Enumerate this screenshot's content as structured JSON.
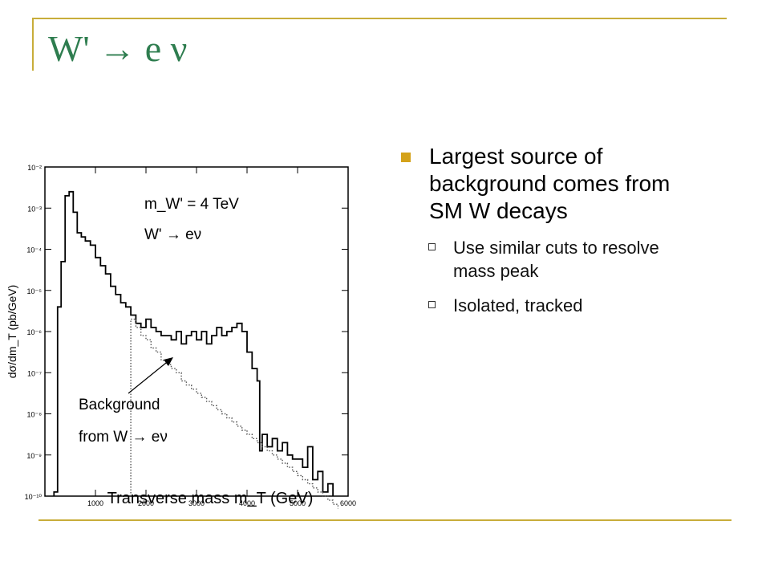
{
  "slide": {
    "title": "W' → e ν",
    "bullets": [
      {
        "text": "Largest source of background comes from SM W decays",
        "sub": [
          "Use similar cuts to resolve mass peak",
          "Isolated, tracked"
        ]
      }
    ],
    "accent_color": "#c8ad3a",
    "title_color": "#2e7d4f",
    "bullet_color": "#d4a21a"
  },
  "chart_data": {
    "type": "line",
    "xlabel": "Transverse mass m_T (GeV)",
    "ylabel": "dσ/dm_T (pb/GeV)",
    "xlim": [
      0,
      6000
    ],
    "ylim_log10": [
      -10,
      -2
    ],
    "x_ticks": [
      "1000",
      "2000",
      "3000",
      "4000",
      "5000",
      "6000"
    ],
    "y_ticks": [
      "10⁻²",
      "10⁻³",
      "10⁻⁴",
      "10⁻⁵",
      "10⁻⁶",
      "10⁻⁷",
      "10⁻⁸",
      "10⁻⁹",
      "10⁻¹⁰"
    ],
    "annotations": {
      "mass": "m_W' = 4 TeV",
      "process": "W' → eν",
      "bg1": "Background",
      "bg2": "from W → eν"
    },
    "series": [
      {
        "style": "solid",
        "x": [
          180,
          250,
          320,
          400,
          480,
          560,
          640,
          720,
          800,
          900,
          1000,
          1100,
          1200,
          1300,
          1400,
          1500,
          1600,
          1700,
          1800,
          1900,
          2000,
          2100,
          2200,
          2300,
          2400,
          2500,
          2600,
          2700,
          2800,
          2900,
          3000,
          3100,
          3200,
          3300,
          3400,
          3500,
          3600,
          3700,
          3800,
          3900,
          4000,
          4100,
          4200,
          4250,
          4300,
          4400,
          4500,
          4600,
          4700,
          4800,
          4900,
          5000,
          5100,
          5200,
          5300,
          5400,
          5500,
          5600,
          5700
        ],
        "log10y": [
          -9.9,
          -5.4,
          -4.3,
          -2.7,
          -2.6,
          -3.1,
          -3.6,
          -3.7,
          -3.8,
          -3.9,
          -4.2,
          -4.4,
          -4.6,
          -4.9,
          -5.1,
          -5.3,
          -5.4,
          -5.6,
          -5.8,
          -5.9,
          -5.7,
          -5.9,
          -6.0,
          -6.1,
          -6.1,
          -6.2,
          -6.0,
          -6.3,
          -6.1,
          -6.0,
          -6.2,
          -6.0,
          -6.3,
          -6.1,
          -5.9,
          -6.1,
          -6.0,
          -5.9,
          -5.8,
          -6.0,
          -6.5,
          -6.9,
          -7.2,
          -8.9,
          -8.5,
          -8.8,
          -8.6,
          -8.9,
          -8.7,
          -9.0,
          -9.1,
          -9.1,
          -9.3,
          -8.8,
          -9.6,
          -9.4,
          -9.9,
          -9.7,
          -10.0
        ]
      },
      {
        "style": "dotted",
        "x": [
          1700,
          1800,
          1900,
          2000,
          2100,
          2200,
          2300,
          2400,
          2500,
          2600,
          2700,
          2800,
          2900,
          3000,
          3100,
          3200,
          3300,
          3400,
          3500,
          3600,
          3700,
          3800,
          3900,
          4000,
          4100,
          4200,
          4300,
          4400,
          4500,
          4600,
          4700,
          4800,
          4900,
          5000,
          5100,
          5200,
          5300,
          5400,
          5500,
          5600,
          5700,
          5800
        ],
        "log10y": [
          -5.7,
          -5.9,
          -6.1,
          -6.2,
          -6.4,
          -6.5,
          -6.7,
          -6.8,
          -6.9,
          -7.0,
          -7.2,
          -7.3,
          -7.4,
          -7.5,
          -7.6,
          -7.7,
          -7.8,
          -7.9,
          -8.0,
          -8.1,
          -8.2,
          -8.3,
          -8.4,
          -8.5,
          -8.6,
          -8.7,
          -8.8,
          -8.9,
          -9.0,
          -9.1,
          -9.2,
          -9.3,
          -9.4,
          -9.5,
          -9.6,
          -9.7,
          -9.8,
          -9.9,
          -10.0,
          -10.1,
          -10.2,
          -10.3
        ]
      }
    ]
  }
}
